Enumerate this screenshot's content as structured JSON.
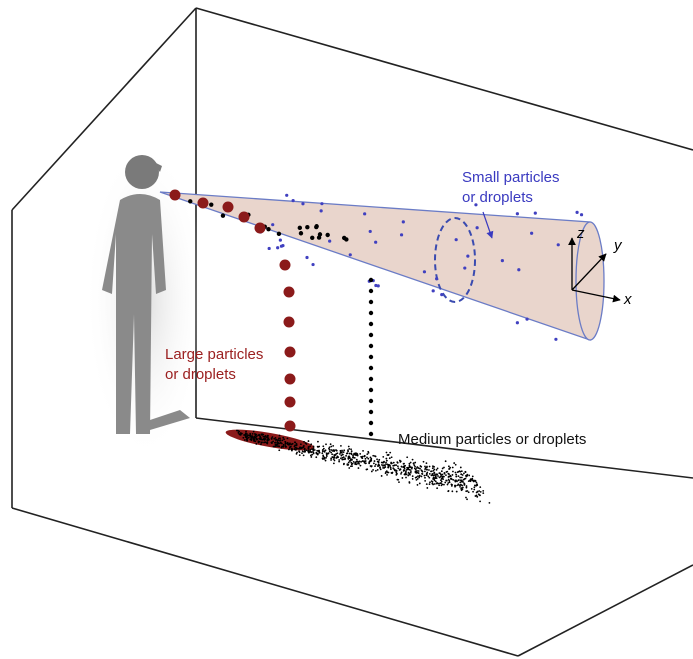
{
  "labels": {
    "small": [
      "Small particles",
      "or droplets"
    ],
    "large": [
      "Large particles",
      "or droplets"
    ],
    "medium": "Medium particles or droplets",
    "axes": {
      "x": "x",
      "y": "y",
      "z": "z"
    }
  }
}
